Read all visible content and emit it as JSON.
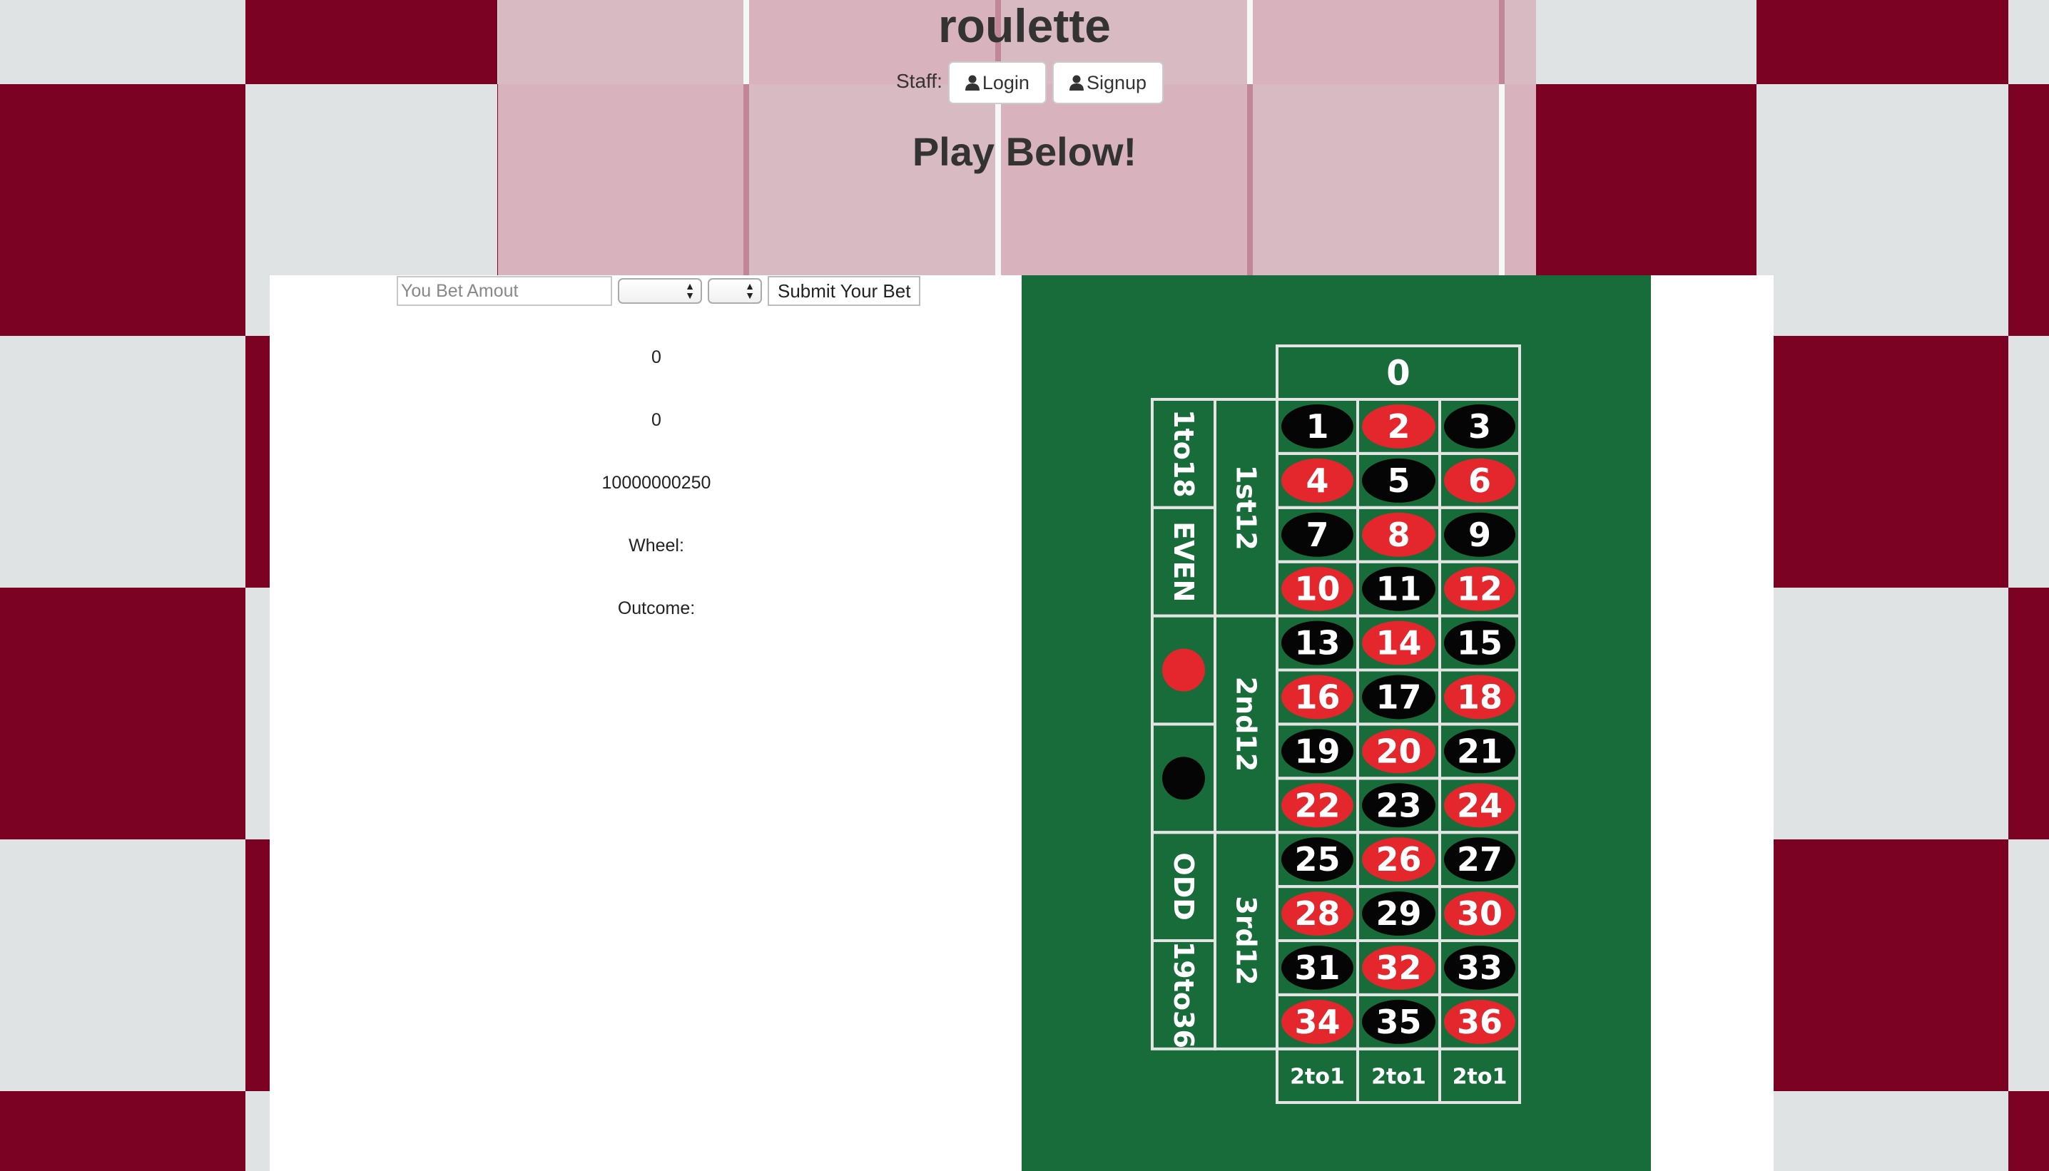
{
  "header": {
    "title": "roulette",
    "staff_label": "Staff:",
    "login_label": "Login",
    "signup_label": "Signup",
    "play_title": "Play Below!"
  },
  "bet_form": {
    "amount_placeholder": "You Bet Amout",
    "select_bet_type_value": "",
    "select_bet_value": "",
    "submit_label": "Submit Your Bet"
  },
  "stats": {
    "line1": "0",
    "line2": "0",
    "balance": "10000000250",
    "wheel_label": "Wheel:",
    "outcome_label": "Outcome:"
  },
  "board": {
    "zero": "0",
    "numbers": [
      {
        "n": "1",
        "c": "black"
      },
      {
        "n": "2",
        "c": "red"
      },
      {
        "n": "3",
        "c": "black"
      },
      {
        "n": "4",
        "c": "red"
      },
      {
        "n": "5",
        "c": "black"
      },
      {
        "n": "6",
        "c": "red"
      },
      {
        "n": "7",
        "c": "black"
      },
      {
        "n": "8",
        "c": "red"
      },
      {
        "n": "9",
        "c": "black"
      },
      {
        "n": "10",
        "c": "red"
      },
      {
        "n": "11",
        "c": "black"
      },
      {
        "n": "12",
        "c": "red"
      },
      {
        "n": "13",
        "c": "black"
      },
      {
        "n": "14",
        "c": "red"
      },
      {
        "n": "15",
        "c": "black"
      },
      {
        "n": "16",
        "c": "red"
      },
      {
        "n": "17",
        "c": "black"
      },
      {
        "n": "18",
        "c": "red"
      },
      {
        "n": "19",
        "c": "black"
      },
      {
        "n": "20",
        "c": "red"
      },
      {
        "n": "21",
        "c": "black"
      },
      {
        "n": "22",
        "c": "red"
      },
      {
        "n": "23",
        "c": "black"
      },
      {
        "n": "24",
        "c": "red"
      },
      {
        "n": "25",
        "c": "black"
      },
      {
        "n": "26",
        "c": "red"
      },
      {
        "n": "27",
        "c": "black"
      },
      {
        "n": "28",
        "c": "red"
      },
      {
        "n": "29",
        "c": "black"
      },
      {
        "n": "30",
        "c": "red"
      },
      {
        "n": "31",
        "c": "black"
      },
      {
        "n": "32",
        "c": "red"
      },
      {
        "n": "33",
        "c": "black"
      },
      {
        "n": "34",
        "c": "red"
      },
      {
        "n": "35",
        "c": "black"
      },
      {
        "n": "36",
        "c": "red"
      }
    ],
    "dozens": [
      "1st12",
      "2nd12",
      "3rd12"
    ],
    "outside": [
      "1to18",
      "EVEN",
      "red",
      "black",
      "ODD",
      "19to36"
    ],
    "columns": [
      "2to1",
      "2to1",
      "2to1"
    ],
    "colors": {
      "felt": "#186c3a",
      "red": "#e4262d",
      "black": "#050505",
      "line": "#e4e4e4"
    }
  },
  "colors": {
    "accent": "#7c0223"
  }
}
